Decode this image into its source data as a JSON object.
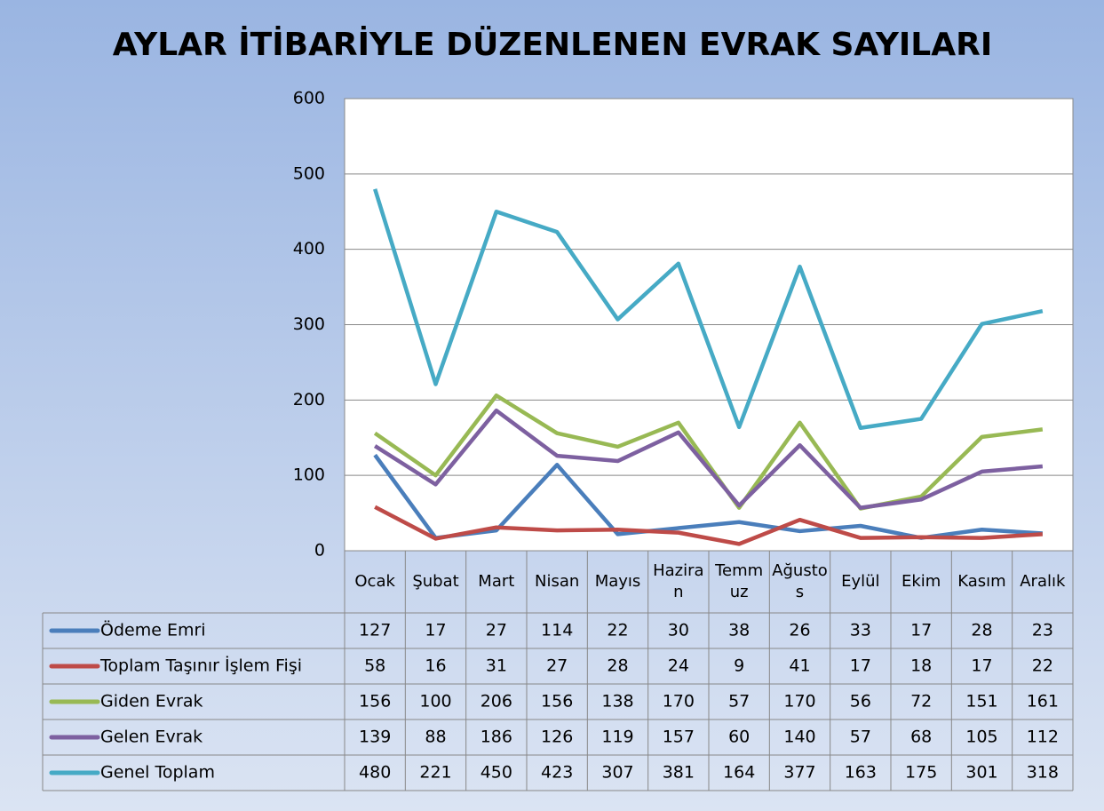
{
  "chart_data": {
    "type": "line",
    "title": "AYLAR İTİBARİYLE DÜZENLENEN EVRAK SAYILARI",
    "categories": [
      "Ocak",
      "Şubat",
      "Mart",
      "Nisan",
      "Mayıs",
      "Haziran",
      "Temmuz",
      "Ağustos",
      "Eylül",
      "Ekim",
      "Kasım",
      "Aralık"
    ],
    "series": [
      {
        "name": "Ödeme Emri",
        "color": "#4a7ebb",
        "values": [
          127,
          17,
          27,
          114,
          22,
          30,
          38,
          26,
          33,
          17,
          28,
          23
        ]
      },
      {
        "name": "Toplam Taşınır İşlem Fişi",
        "color": "#be4b48",
        "values": [
          58,
          16,
          31,
          27,
          28,
          24,
          9,
          41,
          17,
          18,
          17,
          22
        ]
      },
      {
        "name": "Giden Evrak",
        "color": "#98b954",
        "values": [
          156,
          100,
          206,
          156,
          138,
          170,
          57,
          170,
          56,
          72,
          151,
          161
        ]
      },
      {
        "name": "Gelen Evrak",
        "color": "#7d60a0",
        "values": [
          139,
          88,
          186,
          126,
          119,
          157,
          60,
          140,
          57,
          68,
          105,
          112
        ]
      },
      {
        "name": "Genel Toplam",
        "color": "#46aac5",
        "values": [
          480,
          221,
          450,
          423,
          307,
          381,
          164,
          377,
          163,
          175,
          301,
          318
        ]
      }
    ],
    "ylim": [
      0,
      600
    ],
    "yticks": [
      0,
      100,
      200,
      300,
      400,
      500,
      600
    ],
    "grid": true
  }
}
